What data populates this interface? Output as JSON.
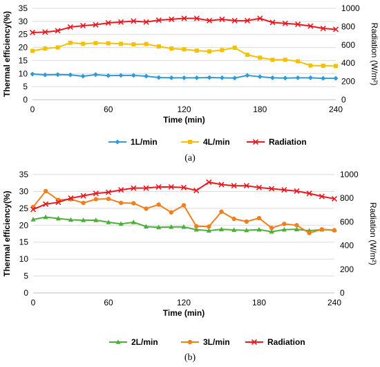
{
  "chart_data": [
    {
      "type": "line",
      "caption": "(a)",
      "xlabel": "Time (min)",
      "ylabel": "Thermal efficiency(%)",
      "y2label": "Radiation (W/m²)",
      "xlim": [
        0,
        240
      ],
      "ylim": [
        0,
        35
      ],
      "y2lim": [
        0,
        1000
      ],
      "xticks": [
        0,
        60,
        120,
        180,
        240
      ],
      "yticks": [
        0,
        5,
        10,
        15,
        20,
        25,
        30,
        35
      ],
      "y2ticks": [
        0,
        200,
        400,
        600,
        800,
        1000
      ],
      "legend_position": "bottom",
      "series": [
        {
          "name": "1L/min",
          "axis": "left",
          "color": "#2E9AD6",
          "marker": "diamond",
          "x": [
            0,
            10,
            20,
            30,
            40,
            50,
            60,
            70,
            80,
            90,
            100,
            110,
            120,
            130,
            140,
            150,
            160,
            170,
            180,
            190,
            200,
            210,
            220,
            230,
            240
          ],
          "y": [
            9.8,
            9.5,
            9.6,
            9.5,
            9.0,
            9.6,
            9.2,
            9.3,
            9.3,
            9.0,
            8.5,
            8.4,
            8.4,
            8.4,
            8.5,
            8.4,
            8.3,
            9.3,
            8.8,
            8.4,
            8.3,
            8.4,
            8.4,
            8.2,
            8.2
          ]
        },
        {
          "name": "4L/min",
          "axis": "left",
          "color": "#F5C000",
          "marker": "square",
          "x": [
            0,
            10,
            20,
            30,
            40,
            50,
            60,
            70,
            80,
            90,
            100,
            110,
            120,
            130,
            140,
            150,
            160,
            170,
            180,
            190,
            200,
            210,
            220,
            230,
            240
          ],
          "y": [
            18.7,
            19.6,
            20.0,
            21.8,
            21.4,
            21.7,
            21.6,
            21.4,
            21.2,
            21.3,
            20.4,
            19.6,
            19.3,
            18.8,
            18.5,
            19.0,
            19.9,
            17.2,
            16.1,
            15.3,
            15.3,
            14.7,
            13.1,
            13.0,
            12.9
          ]
        },
        {
          "name": "Radiation",
          "axis": "right",
          "color": "#E8191F",
          "marker": "x",
          "x": [
            0,
            10,
            20,
            30,
            40,
            50,
            60,
            70,
            80,
            90,
            100,
            110,
            120,
            130,
            140,
            150,
            160,
            170,
            180,
            190,
            200,
            210,
            220,
            230,
            240
          ],
          "y": [
            735,
            740,
            755,
            795,
            810,
            820,
            840,
            850,
            860,
            850,
            870,
            880,
            890,
            890,
            865,
            880,
            865,
            865,
            890,
            845,
            835,
            825,
            805,
            780,
            770
          ]
        }
      ]
    },
    {
      "type": "line",
      "caption": "(b)",
      "xlabel": "Time (min)",
      "ylabel": "Thermal efficiency(%)",
      "y2label": "Radiation (W/m²)",
      "xlim": [
        0,
        240
      ],
      "ylim": [
        0,
        35
      ],
      "y2lim": [
        0,
        1000
      ],
      "xticks": [
        0,
        60,
        120,
        180,
        240
      ],
      "yticks": [
        0,
        5,
        10,
        15,
        20,
        25,
        30,
        35
      ],
      "y2ticks": [
        0,
        200,
        400,
        600,
        800,
        1000
      ],
      "legend_position": "bottom",
      "series": [
        {
          "name": "2L/min",
          "axis": "left",
          "color": "#4CAF3A",
          "marker": "triangle",
          "x": [
            0,
            10,
            20,
            30,
            40,
            50,
            60,
            70,
            80,
            90,
            100,
            110,
            120,
            130,
            140,
            150,
            160,
            170,
            180,
            190,
            200,
            210,
            220,
            230,
            240
          ],
          "y": [
            21.7,
            22.4,
            22.0,
            21.6,
            21.5,
            21.5,
            20.9,
            20.4,
            20.9,
            19.6,
            19.4,
            19.5,
            19.5,
            18.7,
            18.4,
            18.8,
            18.6,
            18.5,
            18.7,
            18.1,
            18.7,
            18.8,
            18.4,
            18.7,
            18.6
          ]
        },
        {
          "name": "3L/min",
          "axis": "left",
          "color": "#F07F1E",
          "marker": "circle",
          "x": [
            0,
            10,
            20,
            30,
            40,
            50,
            60,
            70,
            80,
            90,
            100,
            110,
            120,
            130,
            140,
            150,
            160,
            170,
            180,
            190,
            200,
            210,
            220,
            230,
            240
          ],
          "y": [
            25.4,
            30.1,
            27.5,
            27.7,
            26.6,
            27.7,
            27.8,
            26.6,
            26.5,
            24.9,
            26.1,
            23.8,
            25.9,
            19.7,
            19.6,
            24.0,
            21.9,
            21.1,
            22.1,
            19.2,
            20.4,
            20.0,
            17.7,
            18.8,
            18.5
          ]
        },
        {
          "name": "Radiation",
          "axis": "right",
          "color": "#E8191F",
          "marker": "x",
          "x": [
            0,
            10,
            20,
            30,
            40,
            50,
            60,
            70,
            80,
            90,
            100,
            110,
            120,
            130,
            140,
            150,
            160,
            170,
            180,
            190,
            200,
            210,
            220,
            230,
            240
          ],
          "y": [
            705,
            750,
            765,
            800,
            820,
            840,
            850,
            870,
            885,
            885,
            895,
            895,
            890,
            865,
            935,
            915,
            905,
            905,
            890,
            880,
            870,
            860,
            840,
            815,
            795
          ]
        }
      ]
    }
  ]
}
